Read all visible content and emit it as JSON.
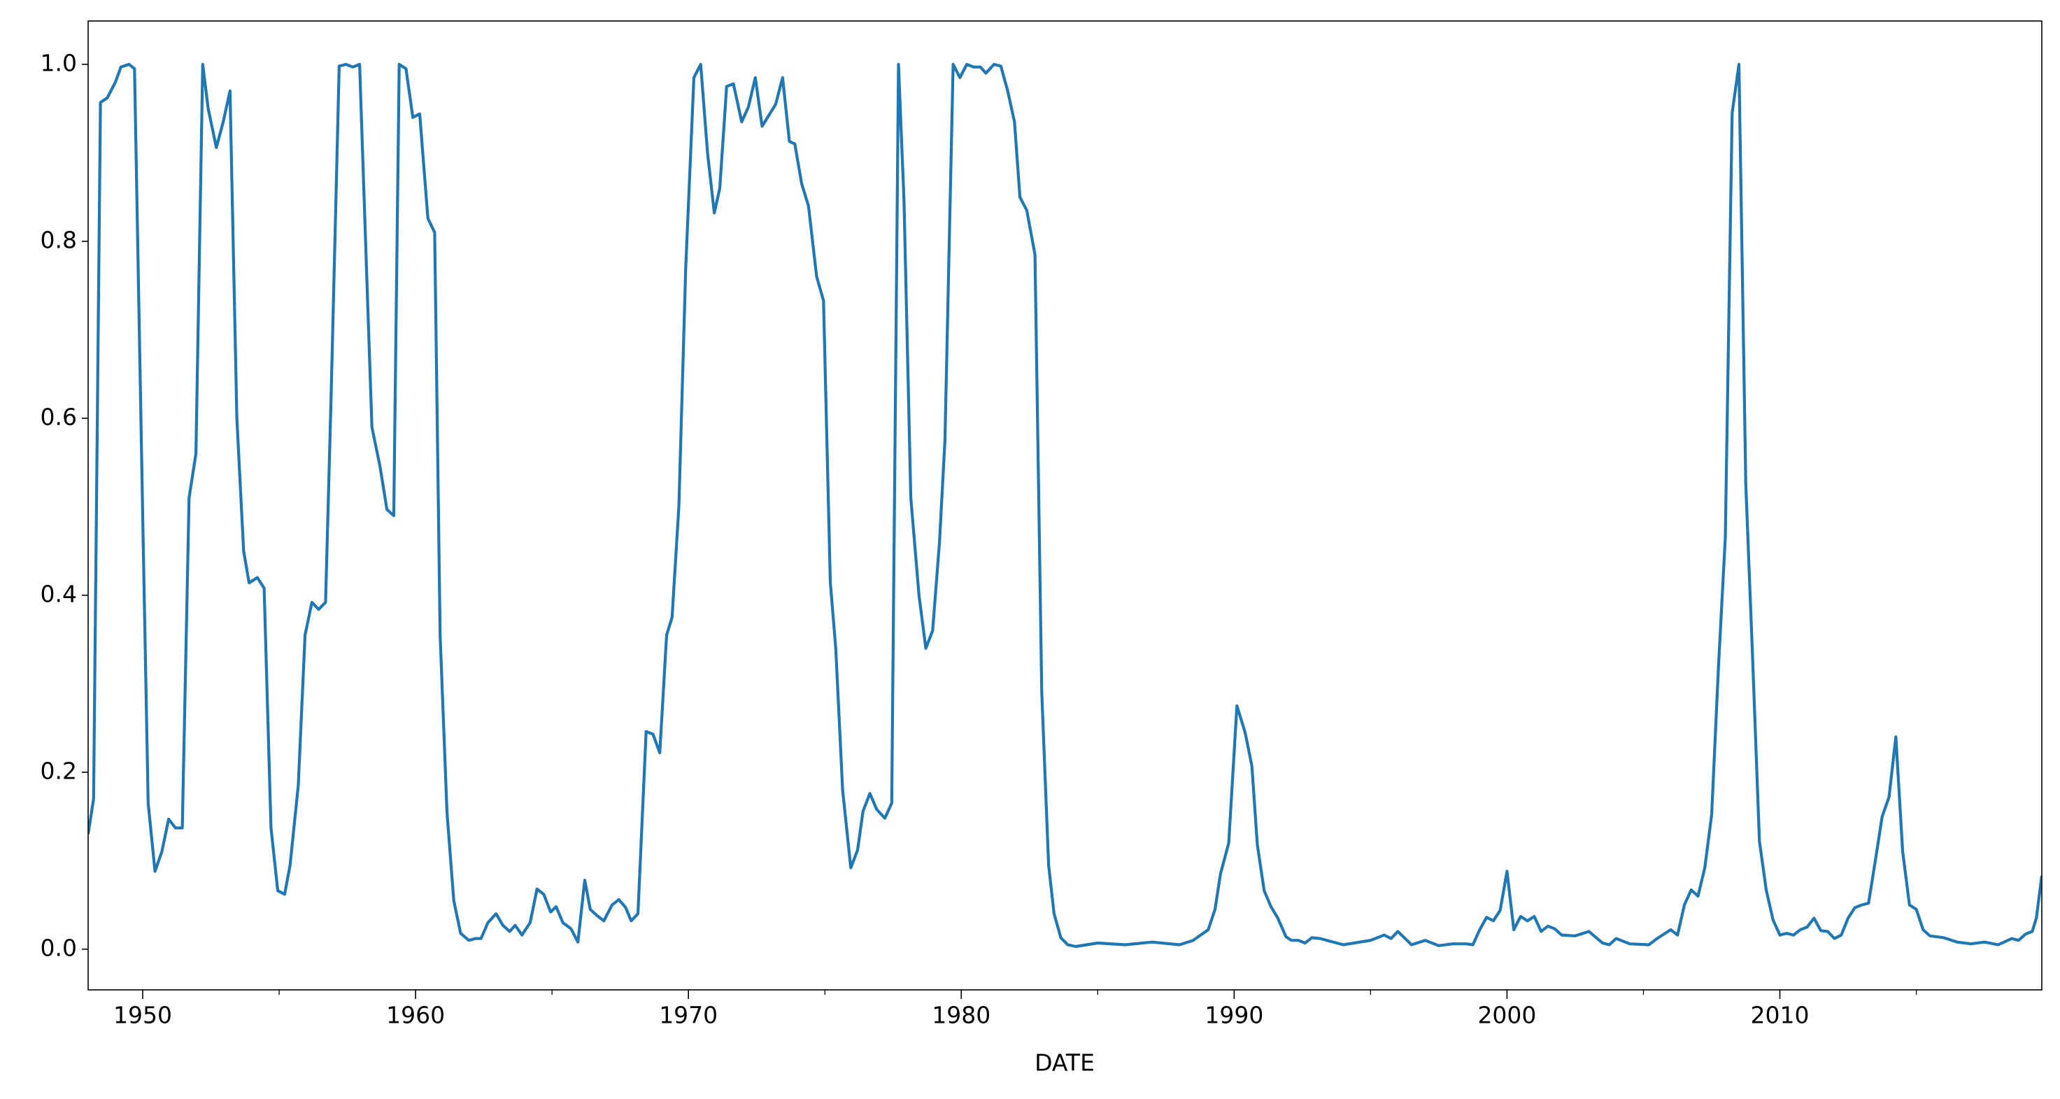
{
  "chart_data": {
    "type": "line",
    "x_label": "DATE",
    "x": [
      1948.0,
      1948.2,
      1948.45,
      1948.7,
      1949.0,
      1949.2,
      1949.5,
      1949.7,
      1950.0,
      1950.2,
      1950.45,
      1950.7,
      1950.95,
      1951.2,
      1951.45,
      1951.7,
      1951.95,
      1952.2,
      1952.4,
      1952.7,
      1952.95,
      1953.2,
      1953.45,
      1953.7,
      1953.9,
      1954.2,
      1954.45,
      1954.7,
      1954.95,
      1955.2,
      1955.4,
      1955.7,
      1955.95,
      1956.2,
      1956.45,
      1956.7,
      1956.9,
      1957.2,
      1957.45,
      1957.7,
      1957.95,
      1958.2,
      1958.4,
      1958.7,
      1958.95,
      1959.2,
      1959.4,
      1959.65,
      1959.9,
      1960.15,
      1960.45,
      1960.7,
      1960.9,
      1961.15,
      1961.4,
      1961.65,
      1961.95,
      1962.2,
      1962.4,
      1962.65,
      1962.95,
      1963.2,
      1963.45,
      1963.65,
      1963.9,
      1964.2,
      1964.45,
      1964.7,
      1964.95,
      1965.15,
      1965.4,
      1965.7,
      1965.95,
      1966.2,
      1966.4,
      1966.65,
      1966.9,
      1967.2,
      1967.45,
      1967.7,
      1967.9,
      1968.15,
      1968.45,
      1968.7,
      1968.95,
      1969.2,
      1969.4,
      1969.65,
      1969.9,
      1970.2,
      1970.45,
      1970.7,
      1970.95,
      1971.15,
      1971.4,
      1971.65,
      1971.95,
      1972.2,
      1972.45,
      1972.7,
      1972.9,
      1973.2,
      1973.45,
      1973.7,
      1973.9,
      1974.15,
      1974.4,
      1974.7,
      1974.95,
      1975.2,
      1975.4,
      1975.65,
      1975.95,
      1976.2,
      1976.4,
      1976.65,
      1976.9,
      1977.2,
      1977.45,
      1977.7,
      1977.9,
      1978.15,
      1978.45,
      1978.7,
      1978.95,
      1979.2,
      1979.4,
      1979.7,
      1979.95,
      1980.2,
      1980.45,
      1980.7,
      1980.9,
      1981.2,
      1981.45,
      1981.7,
      1981.95,
      1982.15,
      1982.4,
      1982.7,
      1982.95,
      1983.2,
      1983.4,
      1983.65,
      1983.9,
      1984.2,
      1985.0,
      1986.0,
      1987.0,
      1988.0,
      1988.5,
      1989.05,
      1989.3,
      1989.5,
      1989.8,
      1990.1,
      1990.4,
      1990.65,
      1990.85,
      1991.1,
      1991.35,
      1991.6,
      1991.9,
      1992.1,
      1992.35,
      1992.6,
      1992.85,
      1993.15,
      1994.0,
      1995.0,
      1995.5,
      1995.75,
      1996.0,
      1996.5,
      1997.0,
      1997.5,
      1998.0,
      1998.5,
      1998.75,
      1999.0,
      1999.25,
      1999.5,
      1999.75,
      2000.0,
      2000.25,
      2000.5,
      2000.75,
      2001.0,
      2001.25,
      2001.5,
      2001.75,
      2002.0,
      2002.5,
      2003.0,
      2003.5,
      2003.75,
      2004.0,
      2004.5,
      2005.2,
      2005.5,
      2006.0,
      2006.25,
      2006.5,
      2006.75,
      2007.0,
      2007.25,
      2007.5,
      2007.75,
      2008.0,
      2008.25,
      2008.5,
      2008.75,
      2009.0,
      2009.25,
      2009.5,
      2009.75,
      2010.0,
      2010.25,
      2010.5,
      2010.75,
      2011.0,
      2011.25,
      2011.5,
      2011.75,
      2012.0,
      2012.25,
      2012.5,
      2012.75,
      2013.0,
      2013.25,
      2013.5,
      2013.75,
      2014.0,
      2014.25,
      2014.5,
      2014.75,
      2015.0,
      2015.25,
      2015.5,
      2015.75,
      2016.0,
      2016.5,
      2017.0,
      2017.5,
      2018.0,
      2018.5,
      2018.75,
      2019.0,
      2019.25,
      2019.4,
      2019.6
    ],
    "series": [
      {
        "color": "#1f77b4",
        "values": [
          0.13,
          0.17,
          0.957,
          0.962,
          0.98,
          0.997,
          1.0,
          0.995,
          0.49,
          0.165,
          0.088,
          0.11,
          0.147,
          0.137,
          0.137,
          0.51,
          0.56,
          1.0,
          0.95,
          0.906,
          0.935,
          0.97,
          0.6,
          0.45,
          0.414,
          0.42,
          0.408,
          0.137,
          0.066,
          0.062,
          0.095,
          0.185,
          0.355,
          0.392,
          0.384,
          0.392,
          0.62,
          0.998,
          1.0,
          0.997,
          1.0,
          0.77,
          0.59,
          0.545,
          0.497,
          0.49,
          1.0,
          0.995,
          0.94,
          0.944,
          0.826,
          0.81,
          0.355,
          0.155,
          0.055,
          0.018,
          0.01,
          0.012,
          0.012,
          0.03,
          0.04,
          0.027,
          0.02,
          0.027,
          0.016,
          0.03,
          0.068,
          0.062,
          0.042,
          0.048,
          0.03,
          0.023,
          0.008,
          0.078,
          0.045,
          0.038,
          0.032,
          0.05,
          0.056,
          0.047,
          0.032,
          0.04,
          0.246,
          0.243,
          0.222,
          0.355,
          0.375,
          0.5,
          0.77,
          0.985,
          1.0,
          0.9,
          0.832,
          0.86,
          0.975,
          0.978,
          0.935,
          0.952,
          0.985,
          0.93,
          0.94,
          0.955,
          0.985,
          0.913,
          0.91,
          0.865,
          0.84,
          0.76,
          0.733,
          0.415,
          0.34,
          0.18,
          0.092,
          0.112,
          0.156,
          0.176,
          0.158,
          0.148,
          0.165,
          1.0,
          0.845,
          0.51,
          0.4,
          0.34,
          0.36,
          0.46,
          0.575,
          1.0,
          0.985,
          1.0,
          0.997,
          0.997,
          0.99,
          1.0,
          0.998,
          0.97,
          0.935,
          0.85,
          0.835,
          0.785,
          0.29,
          0.095,
          0.04,
          0.013,
          0.005,
          0.003,
          0.007,
          0.005,
          0.008,
          0.005,
          0.01,
          0.022,
          0.045,
          0.085,
          0.12,
          0.275,
          0.245,
          0.207,
          0.118,
          0.066,
          0.048,
          0.035,
          0.014,
          0.01,
          0.01,
          0.007,
          0.013,
          0.012,
          0.005,
          0.01,
          0.016,
          0.012,
          0.02,
          0.005,
          0.01,
          0.004,
          0.006,
          0.006,
          0.005,
          0.022,
          0.036,
          0.032,
          0.044,
          0.088,
          0.022,
          0.037,
          0.032,
          0.037,
          0.02,
          0.026,
          0.023,
          0.016,
          0.015,
          0.02,
          0.007,
          0.005,
          0.012,
          0.006,
          0.005,
          0.012,
          0.022,
          0.016,
          0.05,
          0.067,
          0.06,
          0.092,
          0.152,
          0.32,
          0.465,
          0.945,
          1.0,
          0.525,
          0.33,
          0.122,
          0.067,
          0.033,
          0.016,
          0.018,
          0.016,
          0.022,
          0.025,
          0.035,
          0.021,
          0.02,
          0.012,
          0.016,
          0.035,
          0.047,
          0.05,
          0.052,
          0.1,
          0.15,
          0.172,
          0.24,
          0.11,
          0.05,
          0.045,
          0.022,
          0.015,
          0.014,
          0.013,
          0.008,
          0.006,
          0.008,
          0.005,
          0.012,
          0.01,
          0.017,
          0.02,
          0.035,
          0.083
        ]
      }
    ],
    "xlim": [
      1948.0,
      2019.6
    ],
    "xticks": [
      1950,
      1960,
      1970,
      1980,
      1990,
      2000,
      2010
    ],
    "xminorticks": [
      1955,
      1965,
      1975,
      1985,
      1995,
      2005,
      2015
    ],
    "ylim": [
      -0.046,
      1.049
    ],
    "yticks": [
      {
        "value": 0,
        "label": "0.0"
      },
      0.2,
      0.4,
      0.6,
      0.8,
      {
        "value": 1,
        "label": "1.0"
      }
    ],
    "grid": false
  }
}
